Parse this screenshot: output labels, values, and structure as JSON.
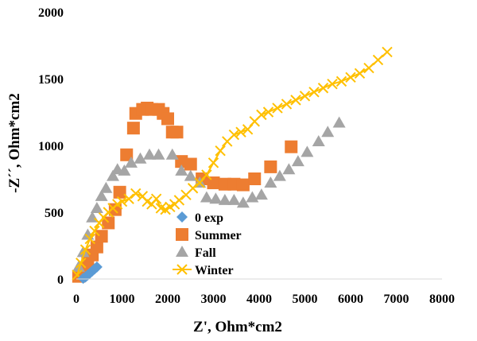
{
  "chart_data": {
    "type": "scatter",
    "title": "",
    "xlabel": "Z', Ohm*cm2",
    "ylabel": "-Z´´, Ohm*cm2",
    "xlim": [
      0,
      8000
    ],
    "ylim": [
      0,
      2000
    ],
    "xticks": [
      0,
      1000,
      2000,
      3000,
      4000,
      5000,
      6000,
      7000,
      8000
    ],
    "yticks": [
      0,
      500,
      1000,
      1500,
      2000
    ],
    "xtick_labels": [
      "0",
      "1000",
      "2000",
      "3000",
      "4000",
      "5000",
      "6000",
      "7000",
      "8000"
    ],
    "ytick_labels": [
      "0",
      "500",
      "1000",
      "1500",
      "2000"
    ],
    "grid": false,
    "legend_position": "bottom-center",
    "series": [
      {
        "name": "0 exp",
        "marker": "diamond",
        "color": "#5B9BD5",
        "x": [
          150,
          200,
          250,
          300,
          350,
          400,
          450
        ],
        "y": [
          5,
          15,
          30,
          45,
          60,
          75,
          90
        ]
      },
      {
        "name": "Summer",
        "marker": "square",
        "color": "#ED7D31",
        "x": [
          50,
          150,
          250,
          350,
          450,
          550,
          700,
          850,
          950,
          1100,
          1250,
          1300,
          1450,
          1550,
          1650,
          1800,
          1900,
          2000,
          2100,
          2200,
          2300,
          2500,
          2750,
          3000,
          3250,
          3450,
          3650,
          3900,
          4250,
          4700
        ],
        "y": [
          20,
          60,
          120,
          180,
          240,
          320,
          420,
          520,
          650,
          930,
          1130,
          1240,
          1270,
          1280,
          1270,
          1270,
          1240,
          1200,
          1100,
          1100,
          880,
          860,
          750,
          720,
          710,
          710,
          705,
          750,
          840,
          990
        ]
      },
      {
        "name": "Fall",
        "marker": "triangle",
        "color": "#A5A5A5",
        "x": [
          50,
          150,
          250,
          350,
          450,
          550,
          650,
          800,
          900,
          1050,
          1200,
          1400,
          1600,
          1800,
          2100,
          2300,
          2500,
          2700,
          2850,
          3050,
          3250,
          3450,
          3650,
          3850,
          4050,
          4250,
          4450,
          4650,
          4850,
          5050,
          5300,
          5500,
          5750
        ],
        "y": [
          90,
          200,
          330,
          460,
          530,
          620,
          680,
          770,
          820,
          810,
          870,
          900,
          930,
          930,
          930,
          810,
          770,
          720,
          610,
          600,
          590,
          590,
          570,
          610,
          630,
          720,
          770,
          820,
          880,
          950,
          1030,
          1100,
          1170
        ]
      },
      {
        "name": "Winter",
        "marker": "x",
        "color": "#FFC000",
        "x": [
          20,
          100,
          200,
          300,
          400,
          500,
          600,
          700,
          800,
          900,
          1000,
          1150,
          1300,
          1450,
          1550,
          1650,
          1750,
          1850,
          1950,
          2050,
          2150,
          2250,
          2400,
          2550,
          2700,
          2850,
          3000,
          3150,
          3300,
          3450,
          3600,
          3750,
          3900,
          4050,
          4200,
          4400,
          4600,
          4800,
          5000,
          5200,
          5400,
          5600,
          5800,
          6000,
          6200,
          6400,
          6600,
          6800
        ],
        "y": [
          30,
          120,
          220,
          300,
          360,
          420,
          460,
          500,
          530,
          560,
          580,
          600,
          640,
          620,
          580,
          560,
          600,
          530,
          520,
          540,
          560,
          590,
          630,
          680,
          720,
          780,
          870,
          960,
          1030,
          1080,
          1100,
          1120,
          1180,
          1230,
          1250,
          1280,
          1310,
          1340,
          1370,
          1400,
          1430,
          1460,
          1480,
          1510,
          1540,
          1580,
          1640,
          1700
        ]
      }
    ]
  }
}
